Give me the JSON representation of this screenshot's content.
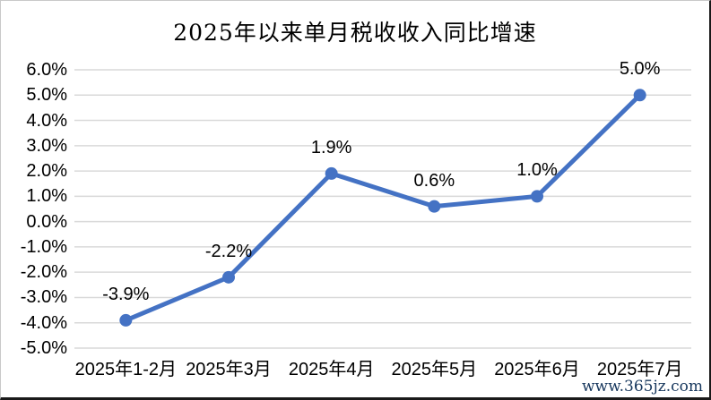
{
  "page": {
    "watermark": "www.365jz.com"
  },
  "chart_data": {
    "type": "line",
    "title": "2025年以来单月税收收入同比增速",
    "categories": [
      "2025年1-2月",
      "2025年3月",
      "2025年4月",
      "2025年5月",
      "2025年6月",
      "2025年7月"
    ],
    "values": [
      -3.9,
      -2.2,
      1.9,
      0.6,
      1.0,
      5.0
    ],
    "data_labels": [
      "-3.9%",
      "-2.2%",
      "1.9%",
      "0.6%",
      "1.0%",
      "5.0%"
    ],
    "y_ticks": [
      "6.0%",
      "5.0%",
      "4.0%",
      "3.0%",
      "2.0%",
      "1.0%",
      "0.0%",
      "-1.0%",
      "-2.0%",
      "-3.0%",
      "-4.0%",
      "-5.0%"
    ],
    "ylim": [
      -5,
      6
    ],
    "y_step": 1,
    "xlabel": "",
    "ylabel": "",
    "grid": true,
    "legend": "none",
    "colors": {
      "line": "#4472C4",
      "marker": "#4472C4",
      "gridline": "#d9d9d9",
      "label_text": "#000000"
    }
  }
}
